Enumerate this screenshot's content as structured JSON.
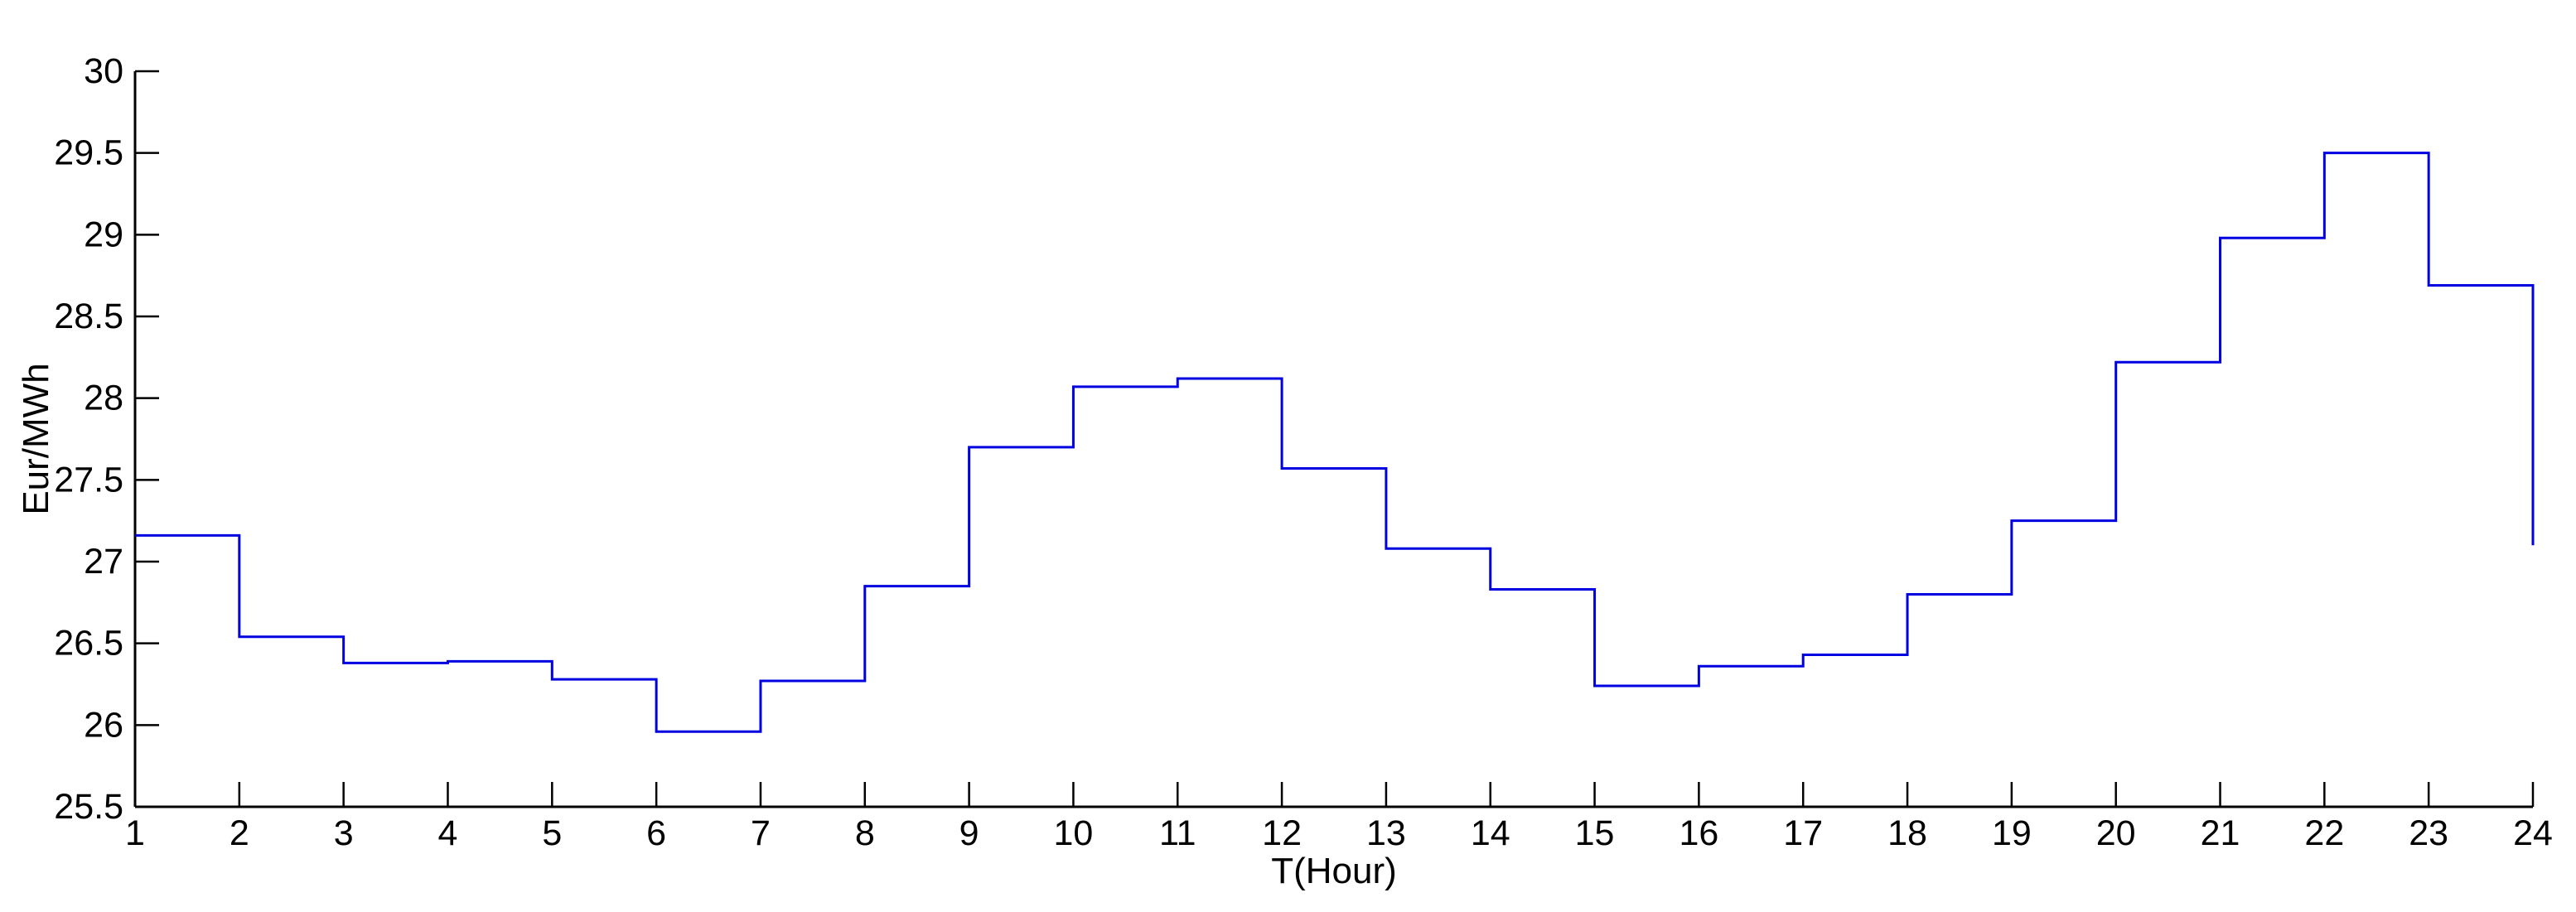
{
  "chart_data": {
    "type": "line",
    "subtype": "stairs-step",
    "title": "",
    "xlabel": "T(Hour)",
    "ylabel": "Eur/MWh",
    "x": [
      1,
      2,
      3,
      4,
      5,
      6,
      7,
      8,
      9,
      10,
      11,
      12,
      13,
      14,
      15,
      16,
      17,
      18,
      19,
      20,
      21,
      22,
      23,
      24
    ],
    "values": [
      27.16,
      26.54,
      26.38,
      26.39,
      26.28,
      25.96,
      26.27,
      26.85,
      27.7,
      28.07,
      28.12,
      27.57,
      27.08,
      26.83,
      26.24,
      26.36,
      26.43,
      26.8,
      27.25,
      28.22,
      28.98,
      29.5,
      28.69,
      27.1
    ],
    "xlim": [
      1,
      24
    ],
    "ylim": [
      25.5,
      30
    ],
    "x_ticks": [
      1,
      2,
      3,
      4,
      5,
      6,
      7,
      8,
      9,
      10,
      11,
      12,
      13,
      14,
      15,
      16,
      17,
      18,
      19,
      20,
      21,
      22,
      23,
      24
    ],
    "y_ticks": [
      25.5,
      26,
      26.5,
      27,
      27.5,
      28,
      28.5,
      29,
      29.5,
      30
    ],
    "grid": false,
    "legend": null,
    "line_color": "#0000E0",
    "axis_color": "#000000",
    "background_color": "#FFFFFF",
    "ticks_direction": "in",
    "box": "off"
  }
}
